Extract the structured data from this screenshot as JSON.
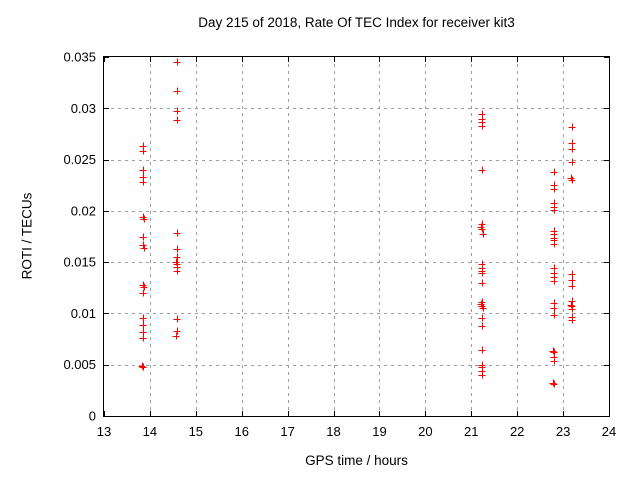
{
  "chart_data": {
    "type": "scatter",
    "title": "Day 215 of 2018, Rate Of TEC Index for receiver kit3",
    "xlabel": "GPS time / hours",
    "ylabel": "ROTI / TECUs",
    "xlim": [
      13,
      24
    ],
    "ylim": [
      0,
      0.035
    ],
    "xticks": [
      13,
      14,
      15,
      16,
      17,
      18,
      19,
      20,
      21,
      22,
      23,
      24
    ],
    "xtick_labels": [
      "13",
      "14",
      "15",
      "16",
      "17",
      "18",
      "19",
      "20",
      "21",
      "22",
      "23",
      "24"
    ],
    "yticks": [
      0,
      0.005,
      0.01,
      0.015,
      0.02,
      0.025,
      0.03,
      0.035
    ],
    "ytick_labels": [
      "0",
      "0.005",
      "0.01",
      "0.015",
      "0.02",
      "0.025",
      "0.03",
      "0.035"
    ],
    "grid": "dashed",
    "grid_color": "#9e9e9e",
    "legend": "none",
    "marker": "plus",
    "marker_color": "#ff0000",
    "marker_size": 7,
    "series": [
      {
        "name": "ROTI",
        "points": [
          [
            13.86,
            0.0263
          ],
          [
            13.86,
            0.0258
          ],
          [
            13.86,
            0.024
          ],
          [
            13.86,
            0.0233
          ],
          [
            13.86,
            0.0228
          ],
          [
            13.86,
            0.0194
          ],
          [
            13.87,
            0.0192
          ],
          [
            13.86,
            0.0175
          ],
          [
            13.86,
            0.0167
          ],
          [
            13.87,
            0.0164
          ],
          [
            13.86,
            0.0128
          ],
          [
            13.87,
            0.0126
          ],
          [
            13.86,
            0.012
          ],
          [
            13.86,
            0.0096
          ],
          [
            13.86,
            0.0089
          ],
          [
            13.86,
            0.0082
          ],
          [
            13.86,
            0.0076
          ],
          [
            13.83,
            0.0049
          ],
          [
            13.86,
            0.0048
          ],
          [
            14.58,
            0.0345
          ],
          [
            14.58,
            0.0317
          ],
          [
            14.58,
            0.0297
          ],
          [
            14.58,
            0.0289
          ],
          [
            14.58,
            0.0178
          ],
          [
            14.58,
            0.0163
          ],
          [
            14.58,
            0.0155
          ],
          [
            14.57,
            0.015
          ],
          [
            14.59,
            0.0148
          ],
          [
            14.58,
            0.0145
          ],
          [
            14.58,
            0.0141
          ],
          [
            14.58,
            0.0095
          ],
          [
            14.58,
            0.0083
          ],
          [
            14.56,
            0.0078
          ],
          [
            21.23,
            0.0294
          ],
          [
            21.24,
            0.029
          ],
          [
            21.23,
            0.0287
          ],
          [
            21.24,
            0.0283
          ],
          [
            21.23,
            0.024
          ],
          [
            21.24,
            0.0187
          ],
          [
            21.22,
            0.0184
          ],
          [
            21.23,
            0.0182
          ],
          [
            21.25,
            0.0177
          ],
          [
            21.23,
            0.0148
          ],
          [
            21.23,
            0.0144
          ],
          [
            21.23,
            0.0141
          ],
          [
            21.24,
            0.0139
          ],
          [
            21.23,
            0.013
          ],
          [
            21.24,
            0.0111
          ],
          [
            21.22,
            0.0109
          ],
          [
            21.23,
            0.0107
          ],
          [
            21.25,
            0.0105
          ],
          [
            21.23,
            0.0096
          ],
          [
            21.23,
            0.0088
          ],
          [
            21.24,
            0.0064
          ],
          [
            21.23,
            0.005
          ],
          [
            21.24,
            0.0048
          ],
          [
            21.23,
            0.0044
          ],
          [
            21.24,
            0.004
          ],
          [
            22.8,
            0.0238
          ],
          [
            22.8,
            0.0225
          ],
          [
            22.8,
            0.0221
          ],
          [
            22.8,
            0.0208
          ],
          [
            22.81,
            0.0204
          ],
          [
            22.8,
            0.0201
          ],
          [
            22.8,
            0.018
          ],
          [
            22.81,
            0.0177
          ],
          [
            22.8,
            0.0174
          ],
          [
            22.8,
            0.0172
          ],
          [
            22.81,
            0.0168
          ],
          [
            22.8,
            0.0144
          ],
          [
            22.8,
            0.0139
          ],
          [
            22.81,
            0.0136
          ],
          [
            22.8,
            0.0132
          ],
          [
            22.8,
            0.011
          ],
          [
            22.8,
            0.0105
          ],
          [
            22.8,
            0.0098
          ],
          [
            22.79,
            0.0063
          ],
          [
            22.81,
            0.0062
          ],
          [
            22.8,
            0.0058
          ],
          [
            22.8,
            0.0054
          ],
          [
            22.79,
            0.0032
          ],
          [
            22.81,
            0.0031
          ],
          [
            23.19,
            0.0282
          ],
          [
            23.19,
            0.0266
          ],
          [
            23.19,
            0.026
          ],
          [
            23.19,
            0.0248
          ],
          [
            23.18,
            0.0232
          ],
          [
            23.2,
            0.023
          ],
          [
            23.19,
            0.0138
          ],
          [
            23.19,
            0.0133
          ],
          [
            23.19,
            0.0127
          ],
          [
            23.19,
            0.0112
          ],
          [
            23.18,
            0.0108
          ],
          [
            23.2,
            0.0107
          ],
          [
            23.19,
            0.0104
          ],
          [
            23.19,
            0.0097
          ],
          [
            23.2,
            0.0094
          ]
        ]
      }
    ]
  }
}
